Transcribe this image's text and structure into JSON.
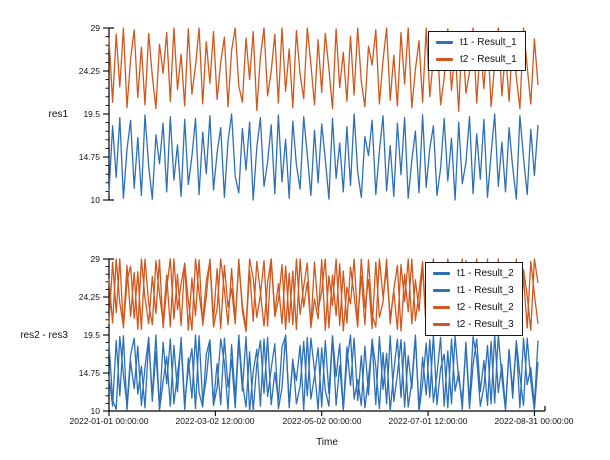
{
  "figure": {
    "background": "#ffffff"
  },
  "palette": {
    "blue": "#2d70b9",
    "orange": "#d2571c",
    "axis_color": "#000000"
  },
  "x_axis": {
    "label": "Time",
    "tick_labels": [
      "2022-01-01 00:00:00",
      "2022-03-02 12:00:00",
      "2022-05-02 00:00:00",
      "2022-07-01 12:00:00",
      "2022-08-31 00:00:00"
    ],
    "tick_days": [
      0,
      60.5,
      121,
      181.5,
      242
    ],
    "axis_total_days": 248,
    "data_total_days": 244
  },
  "chart_data": [
    {
      "type": "line",
      "title": "",
      "ylabel": "res1",
      "xlabel": "",
      "ylim": [
        10,
        29
      ],
      "y_tick_labels": [
        "29",
        "24.25",
        "19.5",
        "14.75",
        "10"
      ],
      "y_tick_values": [
        29,
        24.25,
        19.5,
        14.75,
        10
      ],
      "minor_per_interval": 4,
      "grid": false,
      "legend": {
        "position": "upper right",
        "entries": [
          {
            "label": "t1 - Result_1",
            "color_key": "blue"
          },
          {
            "label": "t2 - Result_1",
            "color_key": "orange"
          }
        ]
      },
      "series": [
        {
          "name": "t1 - Result_1",
          "color_key": "blue",
          "values": [
            10.8,
            18.2,
            12.5,
            19.1,
            10.2,
            15.6,
            18.8,
            11.3,
            16.9,
            10.5,
            19.4,
            13.7,
            10.1,
            17.2,
            14.0,
            18.5,
            10.9,
            19.2,
            12.2,
            16.1,
            10.4,
            18.9,
            11.7,
            14.8,
            19.0,
            10.6,
            17.5,
            12.9,
            19.3,
            11.1,
            15.2,
            18.0,
            10.3,
            16.5,
            19.5,
            12.6,
            10.8,
            17.9,
            13.3,
            18.6,
            10.0,
            15.8,
            19.1,
            11.5,
            14.2,
            18.3,
            10.7,
            19.4,
            12.0,
            16.7,
            10.2,
            18.7,
            13.9,
            11.2,
            19.2,
            15.0,
            10.5,
            17.7,
            11.9,
            18.4,
            14.5,
            10.1,
            19.0,
            12.4,
            16.3,
            10.9,
            18.1,
            11.6,
            19.5,
            13.1,
            10.3,
            17.0,
            14.9,
            18.8,
            10.6,
            15.4,
            19.3,
            11.0,
            16.0,
            10.4,
            18.5,
            12.8,
            19.1,
            10.2,
            14.4,
            17.6,
            10.8,
            19.4,
            11.4,
            15.7,
            18.2,
            10.5,
            13.5,
            19.0,
            12.1,
            16.8,
            10.0,
            18.6,
            11.8,
            14.1,
            19.2,
            10.7,
            17.3,
            12.3,
            18.9,
            10.3,
            15.1,
            19.5,
            11.5,
            16.4,
            10.9,
            18.0,
            13.6,
            10.1,
            19.3,
            14.7,
            10.6,
            17.8,
            12.7,
            18.3
          ]
        },
        {
          "name": "t2 - Result_1",
          "color_key": "orange",
          "values": [
            27.9,
            20.8,
            28.3,
            22.5,
            29.0,
            20.2,
            25.6,
            28.8,
            21.3,
            26.9,
            20.5,
            28.4,
            23.7,
            20.1,
            27.2,
            24.0,
            28.5,
            20.9,
            29.0,
            22.2,
            26.1,
            20.4,
            28.9,
            21.7,
            24.8,
            29.0,
            20.6,
            27.5,
            22.9,
            28.6,
            21.1,
            25.2,
            28.0,
            20.3,
            26.5,
            29.0,
            22.6,
            20.8,
            27.9,
            23.3,
            28.6,
            19.9,
            25.8,
            29.0,
            21.5,
            24.2,
            28.3,
            20.7,
            29.0,
            22.0,
            26.7,
            20.2,
            28.7,
            23.9,
            21.2,
            29.0,
            25.0,
            20.5,
            27.7,
            21.9,
            28.4,
            24.5,
            20.1,
            28.9,
            22.4,
            26.3,
            20.9,
            28.1,
            21.6,
            29.0,
            23.1,
            20.3,
            27.0,
            24.9,
            28.8,
            20.6,
            25.4,
            29.0,
            21.0,
            26.0,
            20.4,
            28.5,
            22.8,
            29.0,
            20.2,
            24.4,
            27.6,
            20.8,
            29.0,
            21.4,
            25.7,
            28.2,
            20.5,
            23.5,
            28.9,
            22.1,
            26.8,
            19.8,
            28.6,
            21.8,
            24.1,
            29.0,
            20.7,
            27.3,
            22.3,
            28.3,
            20.3,
            25.1,
            29.0,
            21.5,
            26.4,
            20.9,
            28.0,
            23.6,
            20.1,
            29.0,
            24.7,
            20.6,
            27.8,
            22.7
          ]
        }
      ]
    },
    {
      "type": "line",
      "title": "",
      "ylabel": "res2 - res3",
      "xlabel": "Time",
      "ylim": [
        10,
        29
      ],
      "y_tick_labels": [
        "29",
        "24.25",
        "19.5",
        "14.75",
        "10"
      ],
      "y_tick_values": [
        29,
        24.25,
        19.5,
        14.75,
        10
      ],
      "minor_per_interval": 4,
      "grid": false,
      "legend": {
        "position": "upper right",
        "entries": [
          {
            "label": "t1 - Result_2",
            "color_key": "blue"
          },
          {
            "label": "t1 - Result_3",
            "color_key": "blue"
          },
          {
            "label": "t2 - Result_2",
            "color_key": "orange"
          },
          {
            "label": "t2 - Result_3",
            "color_key": "orange"
          }
        ]
      },
      "series": [
        {
          "name": "t1 - Result_2",
          "color_key": "blue",
          "values": [
            14.3,
            10.6,
            18.8,
            11.9,
            19.4,
            10.1,
            16.2,
            12.8,
            18.1,
            10.7,
            15.5,
            19.2,
            11.2,
            17.4,
            10.3,
            18.6,
            13.4,
            19.0,
            10.9,
            14.7,
            18.3,
            10.2,
            16.6,
            11.6,
            19.5,
            12.3,
            10.5,
            17.1,
            18.9,
            11.0,
            15.9,
            10.8,
            19.1,
            13.0,
            16.4,
            10.4,
            18.7,
            12.5,
            19.3,
            10.0,
            14.9,
            17.7,
            10.6,
            19.0,
            11.8,
            15.3,
            18.4,
            10.3,
            12.9,
            19.5,
            10.9,
            16.1,
            13.8,
            18.2,
            10.1,
            19.2,
            11.5,
            14.4,
            17.9,
            10.5,
            18.8,
            12.2,
            19.4,
            10.7,
            15.7,
            10.2,
            18.0,
            13.2,
            19.1,
            11.3,
            16.9,
            10.4,
            14.1,
            18.5,
            10.8,
            19.3,
            12.7,
            17.2,
            10.0,
            15.0,
            19.0,
            11.7,
            18.6,
            10.5,
            13.6,
            19.5,
            10.2,
            16.7,
            12.0,
            18.9,
            11.1,
            14.6,
            19.2,
            10.6,
            17.5,
            10.9,
            19.4,
            13.9,
            11.4,
            18.1,
            10.3,
            15.8,
            19.0,
            12.4,
            16.3,
            10.7,
            18.7,
            11.0,
            19.5,
            14.2,
            10.1,
            17.6,
            12.6,
            18.4,
            10.4,
            19.1,
            13.3,
            15.4,
            10.8,
            18.8
          ]
        },
        {
          "name": "t1 - Result_3",
          "color_key": "blue",
          "values": [
            18.5,
            11.4,
            10.2,
            19.3,
            14.5,
            10.8,
            17.0,
            19.1,
            12.1,
            15.6,
            10.4,
            18.9,
            11.8,
            19.5,
            10.1,
            13.7,
            16.8,
            10.6,
            18.2,
            12.4,
            19.2,
            10.9,
            15.2,
            17.8,
            10.3,
            19.4,
            11.1,
            14.0,
            18.6,
            10.7,
            12.9,
            19.0,
            16.0,
            10.2,
            18.3,
            11.6,
            19.5,
            13.5,
            10.5,
            17.4,
            10.0,
            15.9,
            18.8,
            12.2,
            19.2,
            10.8,
            14.8,
            11.3,
            18.0,
            19.4,
            10.4,
            16.5,
            10.9,
            13.1,
            18.7,
            11.9,
            19.1,
            15.1,
            10.2,
            17.9,
            12.6,
            10.6,
            19.3,
            14.3,
            18.4,
            10.1,
            16.2,
            19.5,
            11.5,
            13.9,
            10.7,
            18.1,
            12.0,
            19.0,
            15.5,
            10.3,
            17.3,
            10.9,
            19.4,
            11.2,
            14.6,
            18.9,
            10.5,
            16.9,
            12.8,
            19.2,
            10.0,
            13.4,
            18.5,
            11.7,
            19.5,
            10.8,
            15.3,
            17.1,
            10.4,
            19.0,
            12.5,
            14.9,
            10.2,
            18.6,
            11.0,
            19.3,
            16.6,
            10.6,
            13.0,
            18.2,
            10.9,
            19.5,
            12.3,
            15.8,
            10.3,
            17.7,
            11.6,
            18.8,
            14.4,
            10.7,
            19.1,
            13.8,
            10.1,
            16.1
          ]
        },
        {
          "name": "t2 - Result_2",
          "color_key": "orange",
          "values": [
            20.9,
            28.6,
            22.3,
            29.0,
            20.4,
            26.2,
            28.1,
            21.6,
            27.4,
            20.2,
            29.0,
            23.4,
            20.8,
            28.8,
            24.6,
            21.1,
            27.0,
            20.5,
            29.0,
            22.7,
            25.9,
            28.4,
            20.1,
            26.6,
            21.9,
            28.9,
            20.7,
            24.3,
            29.0,
            21.4,
            27.8,
            20.3,
            28.2,
            23.0,
            25.3,
            20.9,
            29.0,
            22.5,
            19.9,
            27.6,
            21.2,
            28.7,
            24.8,
            20.6,
            26.1,
            29.0,
            21.8,
            23.8,
            28.3,
            20.2,
            27.2,
            20.8,
            29.0,
            22.1,
            25.6,
            28.5,
            20.4,
            24.0,
            21.5,
            28.9,
            20.1,
            26.9,
            23.2,
            29.0,
            20.7,
            27.5,
            21.0,
            28.0,
            24.5,
            20.5,
            29.0,
            22.9,
            26.4,
            20.3,
            28.6,
            21.7,
            23.6,
            29.0,
            20.9,
            25.2,
            28.2,
            20.0,
            27.1,
            22.4,
            29.0,
            21.3,
            24.9,
            28.7,
            20.6,
            26.7,
            20.2,
            28.4,
            23.3,
            21.9,
            29.0,
            25.5,
            20.8,
            27.9,
            22.0,
            28.8,
            20.4,
            24.2,
            29.0,
            21.1,
            26.3,
            20.7,
            28.1,
            23.9,
            29.0,
            20.3,
            25.8,
            21.6,
            28.5,
            22.6,
            20.9,
            27.7,
            24.4,
            20.1,
            29.0,
            26.0
          ]
        },
        {
          "name": "t2 - Result_3",
          "color_key": "orange",
          "values": [
            26.5,
            21.0,
            29.0,
            23.5,
            20.6,
            28.2,
            21.8,
            27.3,
            20.2,
            29.0,
            24.1,
            20.9,
            26.8,
            22.2,
            28.9,
            20.4,
            25.3,
            29.0,
            21.5,
            27.1,
            20.7,
            28.5,
            23.8,
            20.1,
            29.0,
            24.7,
            21.2,
            26.2,
            28.7,
            20.5,
            22.8,
            29.0,
            25.1,
            20.8,
            27.8,
            21.4,
            28.3,
            23.2,
            20.3,
            29.0,
            26.6,
            21.7,
            24.5,
            28.8,
            20.6,
            29.0,
            22.4,
            25.9,
            20.9,
            28.1,
            21.1,
            27.5,
            20.2,
            29.0,
            23.0,
            26.1,
            20.7,
            28.6,
            22.7,
            24.9,
            29.0,
            20.4,
            27.0,
            21.9,
            28.4,
            20.0,
            25.5,
            23.4,
            29.0,
            21.3,
            26.9,
            20.8,
            28.9,
            22.1,
            20.5,
            29.0,
            24.3,
            27.6,
            21.6,
            25.0,
            20.2,
            28.3,
            23.7,
            29.0,
            20.9,
            26.4,
            22.5,
            28.0,
            20.3,
            24.8,
            29.0,
            21.4,
            27.4,
            20.6,
            28.8,
            23.1,
            20.1,
            25.7,
            29.0,
            22.0,
            26.3,
            20.8,
            28.2,
            21.2,
            24.0,
            29.0,
            20.5,
            27.2,
            23.9,
            28.5,
            20.7,
            25.4,
            22.3,
            29.0,
            21.0,
            26.7,
            20.4,
            28.7,
            24.6,
            20.9
          ]
        }
      ]
    }
  ]
}
